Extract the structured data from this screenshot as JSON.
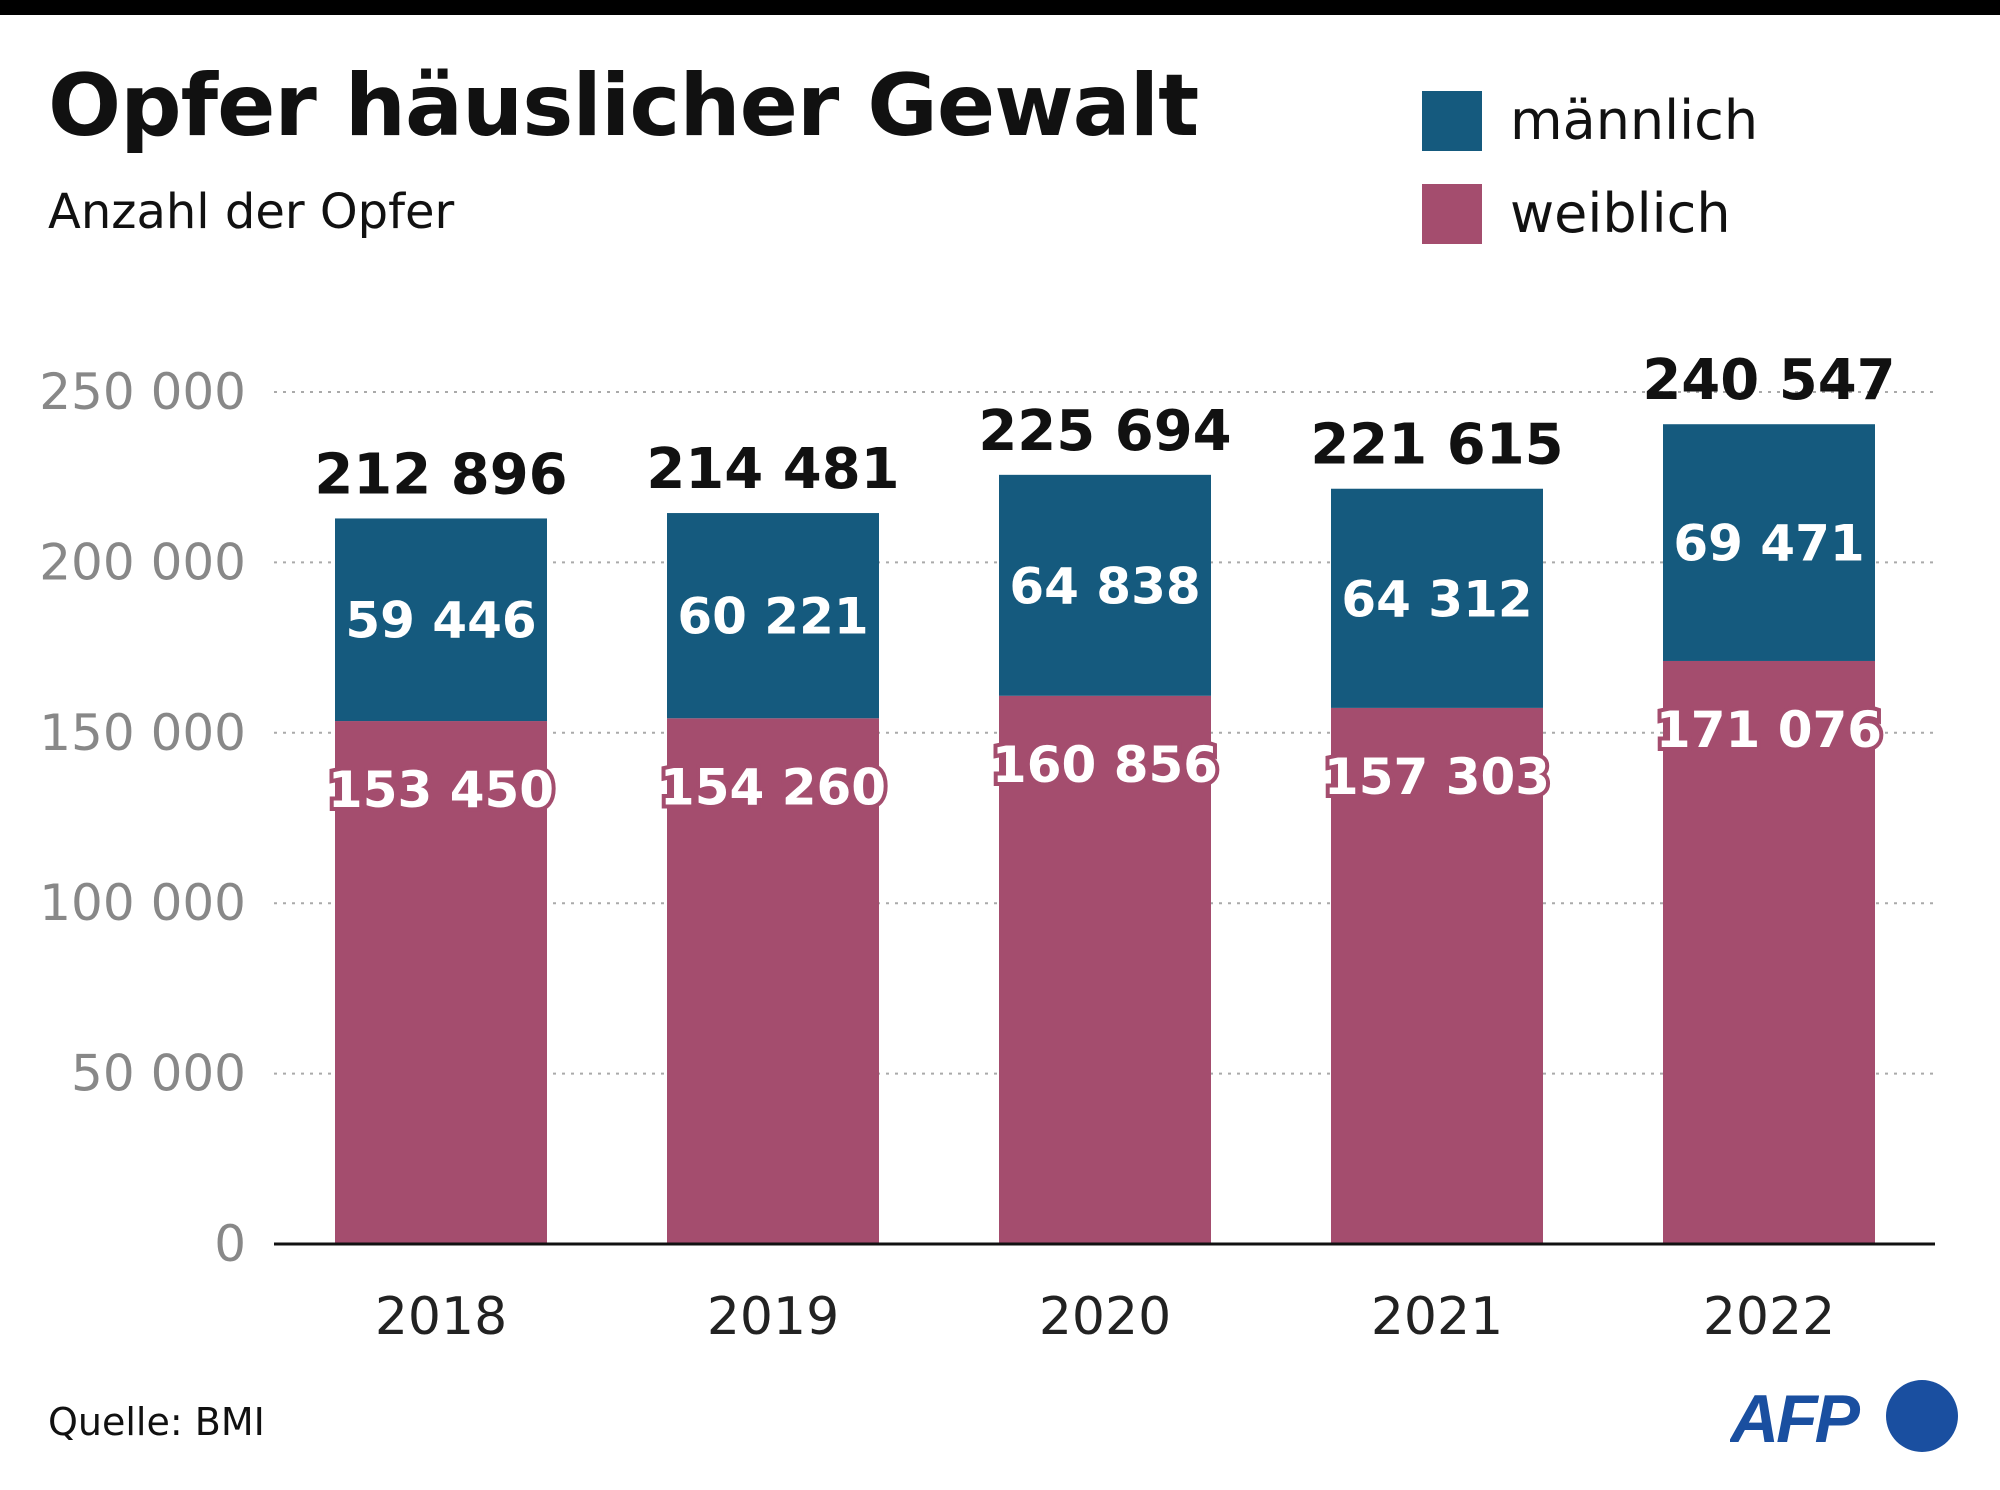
{
  "chart_data": {
    "type": "bar",
    "stacked": true,
    "title": "Opfer häuslicher Gewalt",
    "subtitle": "Anzahl der Opfer",
    "xlabel": "",
    "ylabel": "",
    "categories": [
      "2018",
      "2019",
      "2020",
      "2021",
      "2022"
    ],
    "series": [
      {
        "name": "weiblich",
        "color": "#a44d6e",
        "values": [
          153450,
          154260,
          160856,
          157303,
          171076
        ],
        "labels": [
          "153 450",
          "154 260",
          "160 856",
          "157 303",
          "171 076"
        ]
      },
      {
        "name": "männlich",
        "color": "#155a7e",
        "values": [
          59446,
          60221,
          64838,
          64312,
          69471
        ],
        "labels": [
          "59 446",
          "60 221",
          "64 838",
          "64 312",
          "69 471"
        ]
      }
    ],
    "totals": [
      212896,
      214481,
      225694,
      221615,
      240547
    ],
    "total_labels": [
      "212 896",
      "214 481",
      "225 694",
      "221 615",
      "240 547"
    ],
    "ylim": [
      0,
      250000
    ],
    "yticks": [
      0,
      50000,
      100000,
      150000,
      200000,
      250000
    ],
    "ytick_labels": [
      "0",
      "50 000",
      "100 000",
      "150 000",
      "200 000",
      "250 000"
    ],
    "grid": "horizontal dotted",
    "legend_position": "top-right"
  },
  "legend": [
    {
      "label": "männlich",
      "color": "#155a7e"
    },
    {
      "label": "weiblich",
      "color": "#a44d6e"
    }
  ],
  "source": "Quelle: BMI",
  "logo": {
    "text": "AFP",
    "color": "#1a4fa0"
  }
}
